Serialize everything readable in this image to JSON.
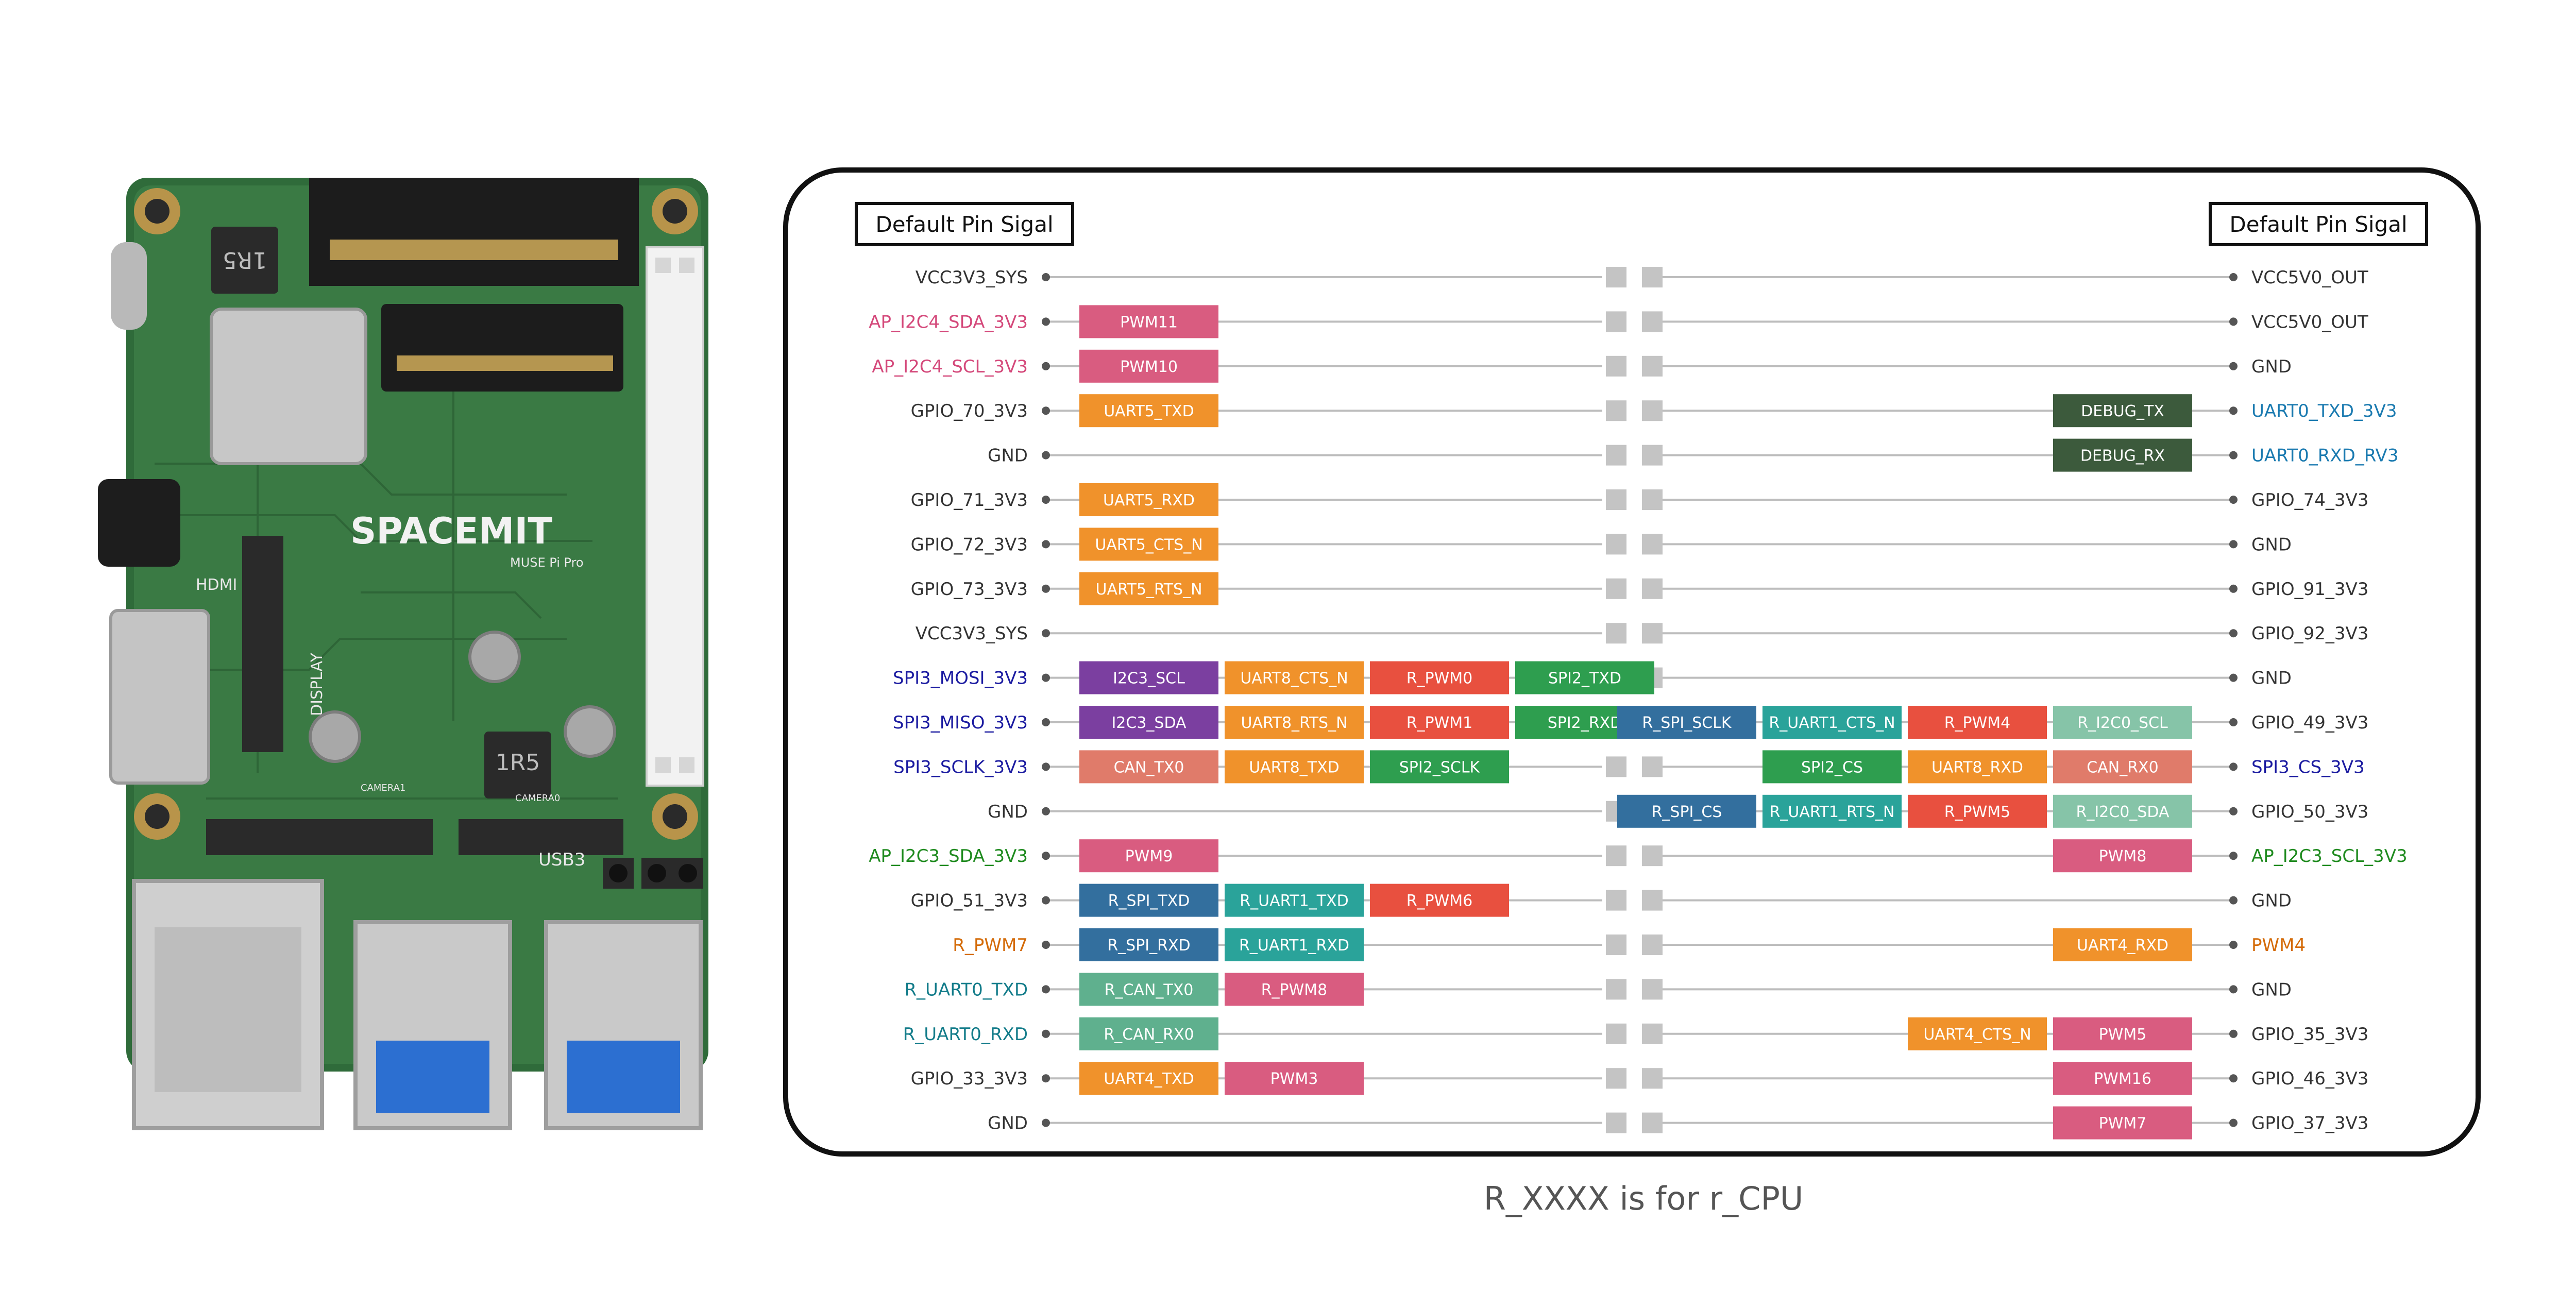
{
  "header": {
    "left_title": "Default Pin Sigal",
    "right_title": "Default Pin Sigal"
  },
  "board": {
    "brand_text": "SPACEMIT",
    "model_text": "MUSE Pi Pro",
    "inductor_label": "1R5",
    "hdmi_label": "HDMI",
    "display_label": "DISPLAY",
    "usb_label": "USB3",
    "camera_labels": [
      "CAMERA1",
      "CAMERA0"
    ]
  },
  "pins": {
    "left": [
      {
        "name": "VCC3V3_SYS",
        "color": "#333333"
      },
      {
        "name": "AP_I2C4_SDA_3V3",
        "color": "#d4487a"
      },
      {
        "name": "AP_I2C4_SCL_3V3",
        "color": "#d4487a"
      },
      {
        "name": "GPIO_70_3V3",
        "color": "#333333"
      },
      {
        "name": "GND",
        "color": "#333333"
      },
      {
        "name": "GPIO_71_3V3",
        "color": "#333333"
      },
      {
        "name": "GPIO_72_3V3",
        "color": "#333333"
      },
      {
        "name": "GPIO_73_3V3",
        "color": "#333333"
      },
      {
        "name": "VCC3V3_SYS",
        "color": "#333333"
      },
      {
        "name": "SPI3_MOSI_3V3",
        "color": "#1a1aa0"
      },
      {
        "name": "SPI3_MISO_3V3",
        "color": "#1a1aa0"
      },
      {
        "name": "SPI3_SCLK_3V3",
        "color": "#1a1aa0"
      },
      {
        "name": "GND",
        "color": "#333333"
      },
      {
        "name": "AP_I2C3_SDA_3V3",
        "color": "#1e8a1e"
      },
      {
        "name": "GPIO_51_3V3",
        "color": "#333333"
      },
      {
        "name": "R_PWM7",
        "color": "#d46b08"
      },
      {
        "name": "R_UART0_TXD",
        "color": "#137c8a"
      },
      {
        "name": "R_UART0_RXD",
        "color": "#137c8a"
      },
      {
        "name": "GPIO_33_3V3",
        "color": "#333333"
      },
      {
        "name": "GND",
        "color": "#333333"
      }
    ],
    "right": [
      {
        "name": "VCC5V0_OUT",
        "color": "#333333"
      },
      {
        "name": "VCC5V0_OUT",
        "color": "#333333"
      },
      {
        "name": "GND",
        "color": "#333333"
      },
      {
        "name": "UART0_TXD_3V3",
        "color": "#1a7ab0"
      },
      {
        "name": "UART0_RXD_RV3",
        "color": "#1a7ab0"
      },
      {
        "name": "GPIO_74_3V3",
        "color": "#333333"
      },
      {
        "name": "GND",
        "color": "#333333"
      },
      {
        "name": "GPIO_91_3V3",
        "color": "#333333"
      },
      {
        "name": "GPIO_92_3V3",
        "color": "#333333"
      },
      {
        "name": "GND",
        "color": "#333333"
      },
      {
        "name": "GPIO_49_3V3",
        "color": "#333333"
      },
      {
        "name": "SPI3_CS_3V3",
        "color": "#1a1aa0"
      },
      {
        "name": "GPIO_50_3V3",
        "color": "#333333"
      },
      {
        "name": "AP_I2C3_SCL_3V3",
        "color": "#1e8a1e"
      },
      {
        "name": "GND",
        "color": "#333333"
      },
      {
        "name": "PWM4",
        "color": "#d46b08"
      },
      {
        "name": "GND",
        "color": "#333333"
      },
      {
        "name": "GPIO_35_3V3",
        "color": "#333333"
      },
      {
        "name": "GPIO_46_3V3",
        "color": "#333333"
      },
      {
        "name": "GPIO_37_3V3",
        "color": "#333333"
      }
    ]
  },
  "tags": {
    "left": [
      [],
      [
        {
          "label": "PWM11",
          "color": "#d95c80"
        }
      ],
      [
        {
          "label": "PWM10",
          "color": "#d95c80"
        }
      ],
      [
        {
          "label": "UART5_TXD",
          "color": "#f0922b"
        }
      ],
      [],
      [
        {
          "label": "UART5_RXD",
          "color": "#f0922b"
        }
      ],
      [
        {
          "label": "UART5_CTS_N",
          "color": "#f0922b"
        }
      ],
      [
        {
          "label": "UART5_RTS_N",
          "color": "#f0922b"
        }
      ],
      [],
      [
        {
          "label": "I2C3_SCL",
          "color": "#7b3fa0"
        },
        {
          "label": "UART8_CTS_N",
          "color": "#f0922b"
        },
        {
          "label": "R_PWM0",
          "color": "#e8503f"
        },
        {
          "label": "SPI2_TXD",
          "color": "#2e9e4f"
        }
      ],
      [
        {
          "label": "I2C3_SDA",
          "color": "#7b3fa0"
        },
        {
          "label": "UART8_RTS_N",
          "color": "#f0922b"
        },
        {
          "label": "R_PWM1",
          "color": "#e8503f"
        },
        {
          "label": "SPI2_RXD",
          "color": "#2e9e4f"
        }
      ],
      [
        {
          "label": "CAN_TX0",
          "color": "#e07b6a"
        },
        {
          "label": "UART8_TXD",
          "color": "#f0922b"
        },
        {
          "label": "SPI2_SCLK",
          "color": "#2e9e4f"
        }
      ],
      [],
      [
        {
          "label": "PWM9",
          "color": "#d95c80"
        }
      ],
      [
        {
          "label": "R_SPI_TXD",
          "color": "#336f9e"
        },
        {
          "label": "R_UART1_TXD",
          "color": "#2aa39a"
        },
        {
          "label": "R_PWM6",
          "color": "#e8503f"
        }
      ],
      [
        {
          "label": "R_SPI_RXD",
          "color": "#336f9e"
        },
        {
          "label": "R_UART1_RXD",
          "color": "#2aa39a"
        }
      ],
      [
        {
          "label": "R_CAN_TX0",
          "color": "#5fb08e"
        },
        {
          "label": "R_PWM8",
          "color": "#d95c80"
        }
      ],
      [
        {
          "label": "R_CAN_RX0",
          "color": "#5fb08e"
        }
      ],
      [
        {
          "label": "UART4_TXD",
          "color": "#f0922b"
        },
        {
          "label": "PWM3",
          "color": "#d95c80"
        }
      ],
      []
    ],
    "right": [
      [],
      [],
      [],
      [
        {
          "label": "DEBUG_TX",
          "color": "#3c5a3c"
        }
      ],
      [
        {
          "label": "DEBUG_RX",
          "color": "#3c5a3c"
        }
      ],
      [],
      [],
      [],
      [],
      [],
      [
        {
          "label": "R_SPI_SCLK",
          "color": "#336f9e"
        },
        {
          "label": "R_UART1_CTS_N",
          "color": "#2aa39a"
        },
        {
          "label": "R_PWM4",
          "color": "#e8503f"
        },
        {
          "label": "R_I2C0_SCL",
          "color": "#86c4a8"
        }
      ],
      [
        {
          "label": "SPI2_CS",
          "color": "#2e9e4f"
        },
        {
          "label": "UART8_RXD",
          "color": "#f0922b"
        },
        {
          "label": "CAN_RX0",
          "color": "#e07b6a"
        }
      ],
      [
        {
          "label": "R_SPI_CS",
          "color": "#336f9e"
        },
        {
          "label": "R_UART1_RTS_N",
          "color": "#2aa39a"
        },
        {
          "label": "R_PWM5",
          "color": "#e8503f"
        },
        {
          "label": "R_I2C0_SDA",
          "color": "#86c4a8"
        }
      ],
      [
        {
          "label": "PWM8",
          "color": "#d95c80"
        }
      ],
      [],
      [
        {
          "label": "UART4_RXD",
          "color": "#f0922b"
        }
      ],
      [],
      [
        {
          "label": "UART4_CTS_N",
          "color": "#f0922b"
        },
        {
          "label": "PWM5",
          "color": "#d95c80"
        }
      ],
      [
        {
          "label": "PWM16",
          "color": "#d95c80"
        }
      ],
      [
        {
          "label": "PWM7",
          "color": "#d95c80"
        }
      ]
    ]
  },
  "caption": "R_XXXX is for r_CPU"
}
